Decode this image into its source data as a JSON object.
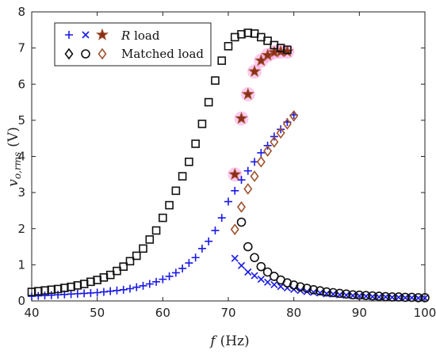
{
  "chart_data": {
    "type": "scatter",
    "xlabel_var": "f",
    "xlabel_unit": "(Hz)",
    "ylabel_var": "v",
    "ylabel_sub": "o,rms",
    "ylabel_unit": "(V)",
    "xlim": [
      40,
      100
    ],
    "ylim": [
      0,
      8
    ],
    "xticks": [
      "40",
      "50",
      "60",
      "70",
      "80",
      "90",
      "100"
    ],
    "yticks": [
      "0",
      "1",
      "2",
      "3",
      "4",
      "5",
      "6",
      "7",
      "8"
    ],
    "grid": false,
    "legend_position": "top-left",
    "legend": [
      {
        "italic": "R",
        "text": " load"
      },
      {
        "italic": "",
        "text": "Matched load"
      }
    ],
    "colors": {
      "blue": "#1a1ae6",
      "black": "#111111",
      "red_edge": "#a0522d",
      "star_fill": "#8b2e1a",
      "highlight": "#ff8cdc"
    },
    "series": [
      {
        "marker": "plus",
        "color": "blue",
        "x": [
          40,
          41,
          42,
          43,
          44,
          45,
          46,
          47,
          48,
          49,
          50,
          51,
          52,
          53,
          54,
          55,
          56,
          57,
          58,
          59,
          60,
          61,
          62,
          63,
          64,
          65,
          66,
          67,
          68,
          69,
          70,
          71,
          72,
          73,
          74,
          75,
          76,
          77,
          78,
          79,
          80
        ],
        "y": [
          0.13,
          0.14,
          0.15,
          0.16,
          0.17,
          0.18,
          0.19,
          0.2,
          0.21,
          0.22,
          0.23,
          0.25,
          0.27,
          0.29,
          0.31,
          0.34,
          0.38,
          0.42,
          0.47,
          0.53,
          0.6,
          0.68,
          0.78,
          0.9,
          1.05,
          1.2,
          1.45,
          1.65,
          1.95,
          2.3,
          2.75,
          3.05,
          3.35,
          3.6,
          3.85,
          4.1,
          4.3,
          4.55,
          4.75,
          4.95,
          5.15
        ]
      },
      {
        "marker": "cross",
        "color": "blue",
        "x": [
          71,
          72,
          73,
          74,
          75,
          76,
          77,
          78,
          79,
          80,
          81,
          82,
          83,
          84,
          85,
          86,
          87,
          88,
          89,
          90,
          91,
          92,
          93,
          94,
          95,
          96,
          97,
          98,
          99,
          100
        ],
        "y": [
          1.18,
          0.98,
          0.8,
          0.7,
          0.6,
          0.52,
          0.45,
          0.4,
          0.36,
          0.32,
          0.29,
          0.26,
          0.24,
          0.22,
          0.2,
          0.19,
          0.17,
          0.16,
          0.15,
          0.14,
          0.13,
          0.12,
          0.11,
          0.11,
          0.1,
          0.1,
          0.09,
          0.09,
          0.08,
          0.08
        ]
      },
      {
        "marker": "star",
        "color": "red",
        "x": [
          71,
          72,
          73,
          74,
          75,
          76,
          77,
          78,
          79
        ],
        "y": [
          3.5,
          5.05,
          5.72,
          6.35,
          6.65,
          6.8,
          6.88,
          6.9,
          6.9
        ]
      },
      {
        "marker": "square",
        "color": "black",
        "x": [
          40,
          41,
          42,
          43,
          44,
          45,
          46,
          47,
          48,
          49,
          50,
          51,
          52,
          53,
          54,
          55,
          56,
          57,
          58,
          59,
          60,
          61,
          62,
          63,
          64,
          65,
          66,
          67,
          68,
          69,
          70,
          71,
          72,
          73,
          74,
          75,
          76,
          77,
          78,
          79
        ],
        "y": [
          0.25,
          0.27,
          0.29,
          0.31,
          0.33,
          0.36,
          0.39,
          0.43,
          0.47,
          0.53,
          0.58,
          0.65,
          0.72,
          0.83,
          0.95,
          1.1,
          1.25,
          1.45,
          1.7,
          1.95,
          2.3,
          2.65,
          3.05,
          3.45,
          3.85,
          4.35,
          4.9,
          5.5,
          6.1,
          6.65,
          7.05,
          7.3,
          7.38,
          7.42,
          7.4,
          7.3,
          7.2,
          7.08,
          7.0,
          6.95
        ]
      },
      {
        "marker": "circle",
        "color": "black",
        "x": [
          72,
          73,
          74,
          75,
          76,
          77,
          78,
          79,
          80,
          81,
          82,
          83,
          84,
          85,
          86,
          87,
          88,
          89,
          90,
          91,
          92,
          93,
          94,
          95,
          96,
          97,
          98,
          99,
          100
        ],
        "y": [
          2.18,
          1.5,
          1.2,
          0.95,
          0.8,
          0.68,
          0.58,
          0.5,
          0.44,
          0.39,
          0.35,
          0.31,
          0.28,
          0.25,
          0.23,
          0.21,
          0.19,
          0.17,
          0.16,
          0.15,
          0.14,
          0.13,
          0.12,
          0.11,
          0.11,
          0.1,
          0.1,
          0.09,
          0.09
        ]
      },
      {
        "marker": "diamond",
        "color": "red",
        "x": [
          71,
          72,
          73,
          74,
          75,
          76,
          77,
          78,
          79,
          80
        ],
        "y": [
          1.98,
          2.6,
          3.1,
          3.45,
          3.85,
          4.15,
          4.4,
          4.65,
          4.9,
          5.12
        ]
      }
    ]
  }
}
